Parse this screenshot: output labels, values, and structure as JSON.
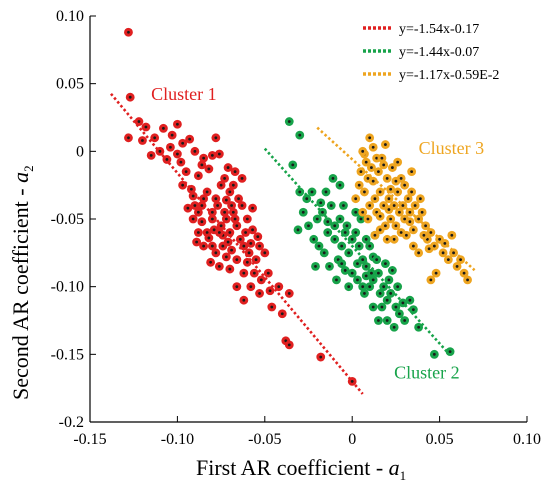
{
  "chart_data": {
    "type": "scatter",
    "xlabel": "First AR coefficient - ",
    "xlabel_sym": "a",
    "xlabel_sub": "1",
    "ylabel": "Second AR coefficient - ",
    "ylabel_sym": "a",
    "ylabel_sub": "2",
    "xlim": [
      -0.15,
      0.1
    ],
    "ylim": [
      -0.2,
      0.1
    ],
    "x_ticks": [
      {
        "value": -0.15,
        "label": "-0.15"
      },
      {
        "value": -0.1,
        "label": "-0.10"
      },
      {
        "value": -0.05,
        "label": "-0.05"
      },
      {
        "value": 0.0,
        "label": "0"
      },
      {
        "value": 0.05,
        "label": "0.05"
      },
      {
        "value": 0.1,
        "label": "0.10"
      }
    ],
    "y_ticks": [
      {
        "value": 0.1,
        "label": "0.10"
      },
      {
        "value": 0.05,
        "label": "0.05"
      },
      {
        "value": 0.0,
        "label": "0"
      },
      {
        "value": -0.05,
        "label": "-0.05"
      },
      {
        "value": -0.1,
        "label": "-0.10"
      },
      {
        "value": -0.15,
        "label": "-0.15"
      },
      {
        "value": -0.2,
        "label": "-0.2"
      }
    ],
    "grid": false,
    "legend_position": "top-right",
    "series": [
      {
        "name": "Cluster 1",
        "color": "#e02020",
        "line_label": "y=-1.54x-0.17",
        "slope": -1.54,
        "intercept": -0.17,
        "line_x": [
          -0.138,
          0.006
        ],
        "label_pos": [
          -0.115,
          0.038
        ],
        "points": [
          [
            -0.128,
            0.088
          ],
          [
            -0.127,
            0.04
          ],
          [
            -0.122,
            0.022
          ],
          [
            -0.118,
            0.018
          ],
          [
            -0.12,
            0.008
          ],
          [
            -0.128,
            0.01
          ],
          [
            -0.115,
            -0.003
          ],
          [
            -0.11,
            0.0
          ],
          [
            -0.113,
            0.01
          ],
          [
            -0.108,
            0.017
          ],
          [
            -0.104,
            0.003
          ],
          [
            -0.103,
            0.012
          ],
          [
            -0.1,
            -0.002
          ],
          [
            -0.098,
            -0.008
          ],
          [
            -0.106,
            -0.006
          ],
          [
            -0.1,
            0.02
          ],
          [
            -0.097,
            0.006
          ],
          [
            -0.093,
            0.009
          ],
          [
            -0.09,
            0.0
          ],
          [
            -0.095,
            -0.015
          ],
          [
            -0.092,
            -0.028
          ],
          [
            -0.097,
            -0.025
          ],
          [
            -0.094,
            -0.042
          ],
          [
            -0.09,
            -0.04
          ],
          [
            -0.088,
            -0.018
          ],
          [
            -0.086,
            -0.01
          ],
          [
            -0.085,
            -0.005
          ],
          [
            -0.082,
            -0.013
          ],
          [
            -0.08,
            -0.003
          ],
          [
            -0.078,
            0.01
          ],
          [
            -0.076,
            -0.002
          ],
          [
            -0.085,
            -0.035
          ],
          [
            -0.083,
            -0.03
          ],
          [
            -0.08,
            -0.045
          ],
          [
            -0.078,
            -0.035
          ],
          [
            -0.075,
            -0.025
          ],
          [
            -0.073,
            -0.02
          ],
          [
            -0.071,
            -0.012
          ],
          [
            -0.07,
            -0.03
          ],
          [
            -0.068,
            -0.045
          ],
          [
            -0.072,
            -0.05
          ],
          [
            -0.075,
            -0.055
          ],
          [
            -0.07,
            -0.06
          ],
          [
            -0.067,
            -0.05
          ],
          [
            -0.065,
            -0.035
          ],
          [
            -0.063,
            -0.04
          ],
          [
            -0.066,
            -0.055
          ],
          [
            -0.061,
            -0.06
          ],
          [
            -0.08,
            -0.05
          ],
          [
            -0.083,
            -0.06
          ],
          [
            -0.086,
            -0.052
          ],
          [
            -0.088,
            -0.06
          ],
          [
            -0.085,
            -0.07
          ],
          [
            -0.08,
            -0.07
          ],
          [
            -0.078,
            -0.075
          ],
          [
            -0.074,
            -0.07
          ],
          [
            -0.072,
            -0.078
          ],
          [
            -0.069,
            -0.073
          ],
          [
            -0.066,
            -0.08
          ],
          [
            -0.062,
            -0.07
          ],
          [
            -0.06,
            -0.082
          ],
          [
            -0.058,
            -0.068
          ],
          [
            -0.057,
            -0.058
          ],
          [
            -0.06,
            -0.05
          ],
          [
            -0.063,
            -0.02
          ],
          [
            -0.067,
            -0.015
          ],
          [
            -0.068,
            -0.025
          ],
          [
            -0.072,
            -0.036
          ],
          [
            -0.077,
            -0.04
          ],
          [
            -0.079,
            -0.058
          ],
          [
            -0.082,
            -0.064
          ],
          [
            -0.089,
            -0.067
          ],
          [
            -0.091,
            -0.05
          ],
          [
            -0.086,
            -0.04
          ],
          [
            -0.074,
            -0.062
          ],
          [
            -0.071,
            -0.067
          ],
          [
            -0.064,
            -0.065
          ],
          [
            -0.059,
            -0.075
          ],
          [
            -0.055,
            -0.08
          ],
          [
            -0.053,
            -0.07
          ],
          [
            -0.05,
            -0.075
          ],
          [
            -0.056,
            -0.09
          ],
          [
            -0.052,
            -0.095
          ],
          [
            -0.048,
            -0.09
          ],
          [
            -0.053,
            -0.105
          ],
          [
            -0.047,
            -0.103
          ],
          [
            -0.042,
            -0.1
          ],
          [
            -0.046,
            -0.115
          ],
          [
            -0.04,
            -0.12
          ],
          [
            -0.036,
            -0.105
          ],
          [
            -0.038,
            -0.14
          ],
          [
            -0.036,
            -0.143
          ],
          [
            -0.018,
            -0.152
          ],
          [
            0.0,
            -0.17
          ],
          [
            -0.062,
            -0.09
          ],
          [
            -0.066,
            -0.1
          ],
          [
            -0.07,
            -0.087
          ],
          [
            -0.076,
            -0.085
          ],
          [
            -0.058,
            -0.1
          ],
          [
            -0.062,
            -0.11
          ],
          [
            -0.076,
            -0.06
          ],
          [
            -0.081,
            -0.082
          ],
          [
            -0.069,
            -0.04
          ],
          [
            -0.073,
            -0.045
          ],
          [
            -0.057,
            -0.042
          ],
          [
            -0.054,
            -0.063
          ],
          [
            -0.088,
            -0.045
          ],
          [
            -0.091,
            -0.033
          ]
        ]
      },
      {
        "name": "Cluster 2",
        "color": "#17a34a",
        "line_label": "y=-1.44x-0.07",
        "slope": -1.44,
        "intercept": -0.07,
        "line_x": [
          -0.05,
          0.055
        ],
        "label_pos": [
          0.024,
          -0.168
        ],
        "points": [
          [
            -0.036,
            0.022
          ],
          [
            -0.03,
            0.012
          ],
          [
            -0.034,
            -0.01
          ],
          [
            -0.03,
            -0.03
          ],
          [
            -0.026,
            -0.035
          ],
          [
            -0.028,
            -0.045
          ],
          [
            -0.023,
            -0.03
          ],
          [
            -0.02,
            -0.05
          ],
          [
            -0.018,
            -0.038
          ],
          [
            -0.015,
            -0.03
          ],
          [
            -0.012,
            -0.04
          ],
          [
            -0.01,
            -0.055
          ],
          [
            -0.022,
            -0.065
          ],
          [
            -0.019,
            -0.07
          ],
          [
            -0.016,
            -0.075
          ],
          [
            -0.014,
            -0.06
          ],
          [
            -0.01,
            -0.065
          ],
          [
            -0.007,
            -0.05
          ],
          [
            -0.005,
            -0.04
          ],
          [
            -0.003,
            -0.055
          ],
          [
            -0.006,
            -0.07
          ],
          [
            -0.008,
            -0.08
          ],
          [
            -0.002,
            -0.075
          ],
          [
            0.0,
            -0.065
          ],
          [
            0.002,
            -0.06
          ],
          [
            0.004,
            -0.07
          ],
          [
            0.006,
            -0.08
          ],
          [
            0.008,
            -0.085
          ],
          [
            0.01,
            -0.07
          ],
          [
            0.012,
            -0.078
          ],
          [
            0.014,
            -0.08
          ],
          [
            0.015,
            -0.09
          ],
          [
            0.012,
            -0.095
          ],
          [
            0.01,
            -0.1
          ],
          [
            0.008,
            -0.092
          ],
          [
            0.006,
            -0.1
          ],
          [
            0.003,
            -0.095
          ],
          [
            0.0,
            -0.09
          ],
          [
            -0.002,
            -0.1
          ],
          [
            -0.004,
            -0.088
          ],
          [
            0.018,
            -0.1
          ],
          [
            0.02,
            -0.11
          ],
          [
            0.022,
            -0.105
          ],
          [
            0.017,
            -0.115
          ],
          [
            0.025,
            -0.115
          ],
          [
            0.027,
            -0.12
          ],
          [
            0.03,
            -0.125
          ],
          [
            0.024,
            -0.13
          ],
          [
            0.015,
            -0.125
          ],
          [
            0.012,
            -0.115
          ],
          [
            0.02,
            -0.125
          ],
          [
            0.033,
            -0.11
          ],
          [
            0.035,
            -0.117
          ],
          [
            0.038,
            -0.13
          ],
          [
            0.047,
            -0.15
          ],
          [
            0.056,
            -0.148
          ],
          [
            -0.025,
            -0.055
          ],
          [
            -0.021,
            -0.085
          ],
          [
            -0.013,
            -0.085
          ],
          [
            -0.009,
            -0.095
          ],
          [
            -0.004,
            -0.06
          ],
          [
            0.005,
            -0.05
          ],
          [
            0.008,
            -0.065
          ],
          [
            -0.017,
            -0.045
          ],
          [
            -0.011,
            -0.02
          ],
          [
            -0.007,
            -0.025
          ],
          [
            0.002,
            -0.045
          ],
          [
            0.011,
            -0.09
          ],
          [
            0.016,
            -0.105
          ],
          [
            0.021,
            -0.095
          ],
          [
            0.026,
            -0.1
          ],
          [
            0.029,
            -0.112
          ],
          [
            -0.006,
            -0.083
          ],
          [
            0.003,
            -0.083
          ],
          [
            0.007,
            -0.105
          ],
          [
            0.013,
            -0.062
          ],
          [
            -0.014,
            -0.052
          ],
          [
            0.019,
            -0.083
          ],
          [
            0.023,
            -0.088
          ],
          [
            -0.031,
            -0.058
          ]
        ]
      },
      {
        "name": "Cluster 3",
        "color": "#eea520",
        "line_label": "y=-1.17x-0.59E-2",
        "slope": -1.17,
        "intercept": -0.0059,
        "line_x": [
          -0.02,
          0.07
        ],
        "label_pos": [
          0.038,
          -0.002
        ],
        "points": [
          [
            0.01,
            0.01
          ],
          [
            0.012,
            0.003
          ],
          [
            0.014,
            -0.005
          ],
          [
            0.008,
            -0.008
          ],
          [
            0.005,
            -0.015
          ],
          [
            0.009,
            -0.02
          ],
          [
            0.012,
            -0.022
          ],
          [
            0.015,
            -0.015
          ],
          [
            0.018,
            -0.01
          ],
          [
            0.02,
            -0.02
          ],
          [
            0.022,
            -0.028
          ],
          [
            0.016,
            -0.03
          ],
          [
            0.013,
            -0.035
          ],
          [
            0.01,
            -0.04
          ],
          [
            0.007,
            -0.03
          ],
          [
            0.004,
            -0.025
          ],
          [
            0.002,
            -0.035
          ],
          [
            0.006,
            -0.045
          ],
          [
            0.009,
            -0.05
          ],
          [
            0.014,
            -0.045
          ],
          [
            0.018,
            -0.04
          ],
          [
            0.021,
            -0.035
          ],
          [
            0.024,
            -0.04
          ],
          [
            0.026,
            -0.03
          ],
          [
            0.028,
            -0.02
          ],
          [
            0.03,
            -0.025
          ],
          [
            0.032,
            -0.035
          ],
          [
            0.034,
            -0.03
          ],
          [
            0.036,
            -0.04
          ],
          [
            0.033,
            -0.045
          ],
          [
            0.03,
            -0.05
          ],
          [
            0.027,
            -0.045
          ],
          [
            0.025,
            -0.055
          ],
          [
            0.022,
            -0.05
          ],
          [
            0.019,
            -0.055
          ],
          [
            0.016,
            -0.058
          ],
          [
            0.013,
            -0.062
          ],
          [
            0.02,
            -0.065
          ],
          [
            0.024,
            -0.065
          ],
          [
            0.028,
            -0.06
          ],
          [
            0.031,
            -0.062
          ],
          [
            0.035,
            -0.058
          ],
          [
            0.038,
            -0.05
          ],
          [
            0.04,
            -0.045
          ],
          [
            0.042,
            -0.055
          ],
          [
            0.045,
            -0.06
          ],
          [
            0.043,
            -0.065
          ],
          [
            0.047,
            -0.07
          ],
          [
            0.05,
            -0.065
          ],
          [
            0.052,
            -0.075
          ],
          [
            0.055,
            -0.08
          ],
          [
            0.058,
            -0.075
          ],
          [
            0.06,
            -0.085
          ],
          [
            0.062,
            -0.08
          ],
          [
            0.064,
            -0.09
          ],
          [
            0.066,
            -0.095
          ],
          [
            0.048,
            -0.09
          ],
          [
            0.045,
            -0.095
          ],
          [
            0.035,
            -0.07
          ],
          [
            0.038,
            -0.075
          ],
          [
            0.017,
            -0.005
          ],
          [
            0.019,
            0.005
          ],
          [
            0.023,
            -0.012
          ],
          [
            0.026,
            -0.008
          ],
          [
            0.007,
            -0.002
          ],
          [
            0.011,
            -0.012
          ],
          [
            0.029,
            -0.04
          ],
          [
            0.033,
            -0.052
          ],
          [
            0.041,
            -0.062
          ],
          [
            0.044,
            -0.072
          ],
          [
            0.053,
            -0.068
          ],
          [
            0.057,
            -0.062
          ],
          [
            0.006,
            0.0
          ],
          [
            0.016,
            -0.048
          ],
          [
            0.021,
            -0.043
          ],
          [
            0.025,
            -0.022
          ],
          [
            0.039,
            -0.035
          ],
          [
            0.034,
            -0.015
          ]
        ]
      }
    ]
  }
}
